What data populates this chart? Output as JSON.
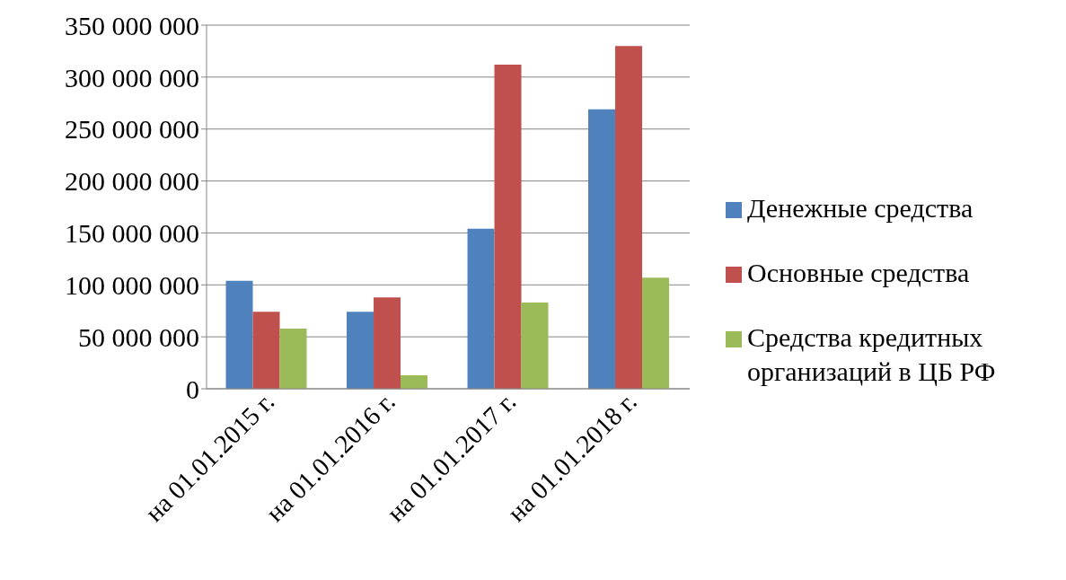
{
  "chart_data": {
    "type": "bar",
    "categories": [
      "на 01.01.2015 г.",
      "на 01.01.2016 г.",
      "на 01.01.2017 г.",
      "на 01.01.2018 г."
    ],
    "series": [
      {
        "name": "Денежные средства",
        "color": "#4f81bd",
        "values": [
          104000000,
          74000000,
          154000000,
          269000000
        ]
      },
      {
        "name": "Основные средства",
        "color": "#c0504d",
        "values": [
          74000000,
          88000000,
          312000000,
          330000000
        ]
      },
      {
        "name": "Средства кредитных организаций в ЦБ РФ",
        "color": "#9bbb59",
        "values": [
          58000000,
          13000000,
          83000000,
          107000000
        ]
      }
    ],
    "ylim": [
      0,
      350000000
    ],
    "yticks": [
      {
        "value": 0,
        "label": "0"
      },
      {
        "value": 50000000,
        "label": "50 000 000"
      },
      {
        "value": 100000000,
        "label": "100 000 000"
      },
      {
        "value": 150000000,
        "label": "150 000 000"
      },
      {
        "value": 200000000,
        "label": "200 000 000"
      },
      {
        "value": 250000000,
        "label": "250 000 000"
      },
      {
        "value": 300000000,
        "label": "300 000 000"
      },
      {
        "value": 350000000,
        "label": "350 000 000"
      }
    ],
    "grid": "y",
    "legend": "right"
  }
}
